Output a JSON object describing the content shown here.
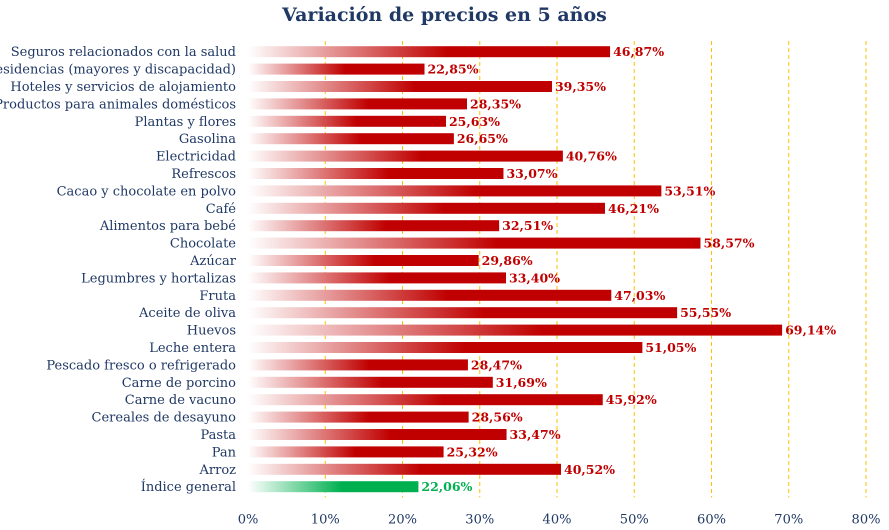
{
  "chart_data": {
    "type": "bar",
    "orientation": "horizontal",
    "title": "Variación de precios en 5 años",
    "categories": [
      "Seguros relacionados con la salud",
      "Residencias (mayores y discapacidad)",
      "Hoteles y servicios de alojamiento",
      "Productos para animales domésticos",
      "Plantas y flores",
      "Gasolina",
      "Electricidad",
      "Refrescos",
      "Cacao y chocolate en polvo",
      "Café",
      "Alimentos para bebé",
      "Chocolate",
      "Azúcar",
      "Legumbres y hortalizas",
      "Fruta",
      "Aceite de oliva",
      "Huevos",
      "Leche entera",
      "Pescado fresco o refrigerado",
      "Carne de porcino",
      "Carne de vacuno",
      "Cereales de desayuno",
      "Pasta",
      "Pan",
      "Arroz",
      "Índice general"
    ],
    "values": [
      46.87,
      22.85,
      39.35,
      28.35,
      25.63,
      26.65,
      40.76,
      33.07,
      53.51,
      46.21,
      32.51,
      58.57,
      29.86,
      33.4,
      47.03,
      55.55,
      69.14,
      51.05,
      28.47,
      31.69,
      45.92,
      28.56,
      33.47,
      25.32,
      40.52,
      22.06
    ],
    "value_labels": [
      "46,87%",
      "22,85%",
      "39,35%",
      "28,35%",
      "25,63%",
      "26,65%",
      "40,76%",
      "33,07%",
      "53,51%",
      "46,21%",
      "32,51%",
      "58,57%",
      "29,86%",
      "33,40%",
      "47,03%",
      "55,55%",
      "69,14%",
      "51,05%",
      "28,47%",
      "31,69%",
      "45,92%",
      "28,56%",
      "33,47%",
      "25,32%",
      "40,52%",
      "22,06%"
    ],
    "x_ticks": [
      0,
      10,
      20,
      30,
      40,
      50,
      60,
      70,
      80
    ],
    "x_tick_labels": [
      "0%",
      "10%",
      "20%",
      "30%",
      "40%",
      "50%",
      "60%",
      "70%",
      "80%"
    ],
    "xlim": [
      0,
      80
    ],
    "grid": "vertical dashed",
    "highlight_category": "Índice general",
    "colors": {
      "bar": "#c00000",
      "highlight_bar": "#00b050",
      "label": "#c00000",
      "highlight_label": "#00b050",
      "category_text": "#1f3864",
      "grid": "#ffc000",
      "axis_text": "#1f3864"
    }
  }
}
